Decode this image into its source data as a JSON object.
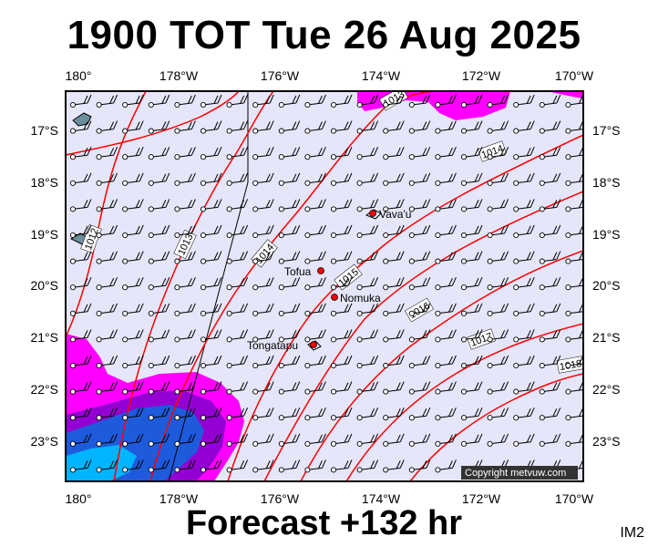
{
  "header": {
    "title": "1900 TOT Tue 26 Aug 2025"
  },
  "footer": {
    "forecast": "Forecast +132 hr",
    "image_id": "IM2"
  },
  "map": {
    "lon_range": [
      180,
      190
    ],
    "lat_range": [
      -23.7,
      -16.0
    ],
    "lon_ticks": [
      "180°",
      "178°W",
      "176°W",
      "174°W",
      "172°W",
      "170°W"
    ],
    "lat_ticks": [
      "17°S",
      "18°S",
      "19°S",
      "20°S",
      "21°S",
      "22°S",
      "23°S"
    ],
    "colors": {
      "ocean": "#e6e6fa",
      "isobar": "#ff0000",
      "rain_magenta": "#ff00ff",
      "rain_purple": "#9400d3",
      "rain_blue": "#1e5adc",
      "rain_cyan": "#00b4ff"
    },
    "places": [
      {
        "name": "Vava'u",
        "lon": 186.0,
        "lat": -18.65
      },
      {
        "name": "Tofua",
        "lon": 184.95,
        "lat": -19.75
      },
      {
        "name": "Nomuka",
        "lon": 185.3,
        "lat": -20.25
      },
      {
        "name": "Tongatapu",
        "lon": 184.8,
        "lat": -21.15
      }
    ],
    "isobar_labels": [
      "1012",
      "1013",
      "1013",
      "1014",
      "1014",
      "1015",
      "1016",
      "1017",
      "1018"
    ],
    "copyright": "Copyright metvuw.com"
  }
}
